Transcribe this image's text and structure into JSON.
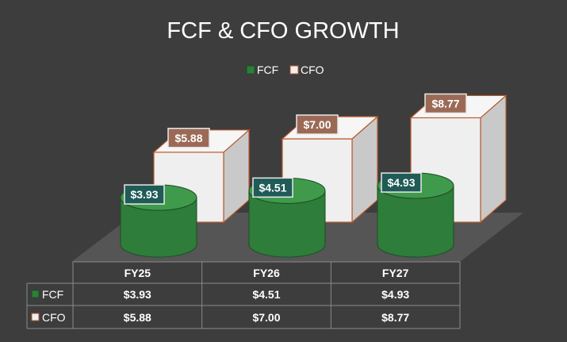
{
  "chart_data": {
    "type": "bar",
    "title": "FCF & CFO GROWTH",
    "categories": [
      "FY25",
      "FY26",
      "FY27"
    ],
    "series": [
      {
        "name": "FCF",
        "values": [
          3.93,
          4.51,
          4.93
        ],
        "labels": [
          "$3.93",
          "$4.51",
          "$4.93"
        ],
        "shape": "cylinder",
        "color": "#2e7d3a"
      },
      {
        "name": "CFO",
        "values": [
          5.88,
          7.0,
          8.77
        ],
        "labels": [
          "$5.88",
          "$7.00",
          "$8.77"
        ],
        "shape": "box",
        "color": "#efefef"
      }
    ],
    "legend_position": "top",
    "data_table": true,
    "ylim": [
      0,
      9
    ]
  },
  "colors": {
    "background": "#3d3d3d",
    "fcf": "#2e7d3a",
    "cfo": "#efefef",
    "cfo_edge": "#b85a2e",
    "floor": "#555555"
  }
}
